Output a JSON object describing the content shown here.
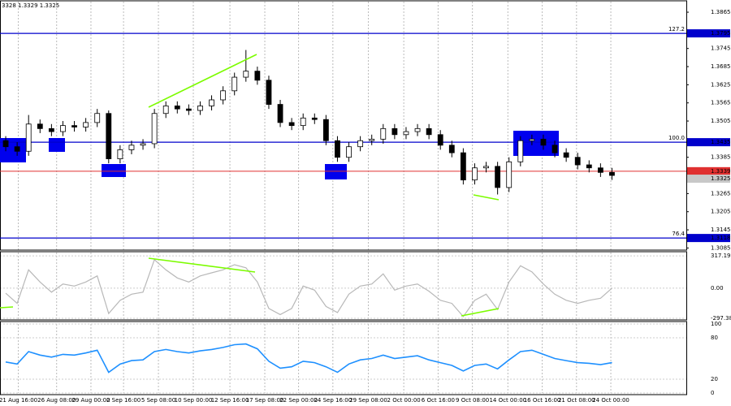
{
  "chart_data": [
    {
      "type": "candlestick",
      "title": "3328 1.3329 1.3325",
      "xlim": [
        0,
        60
      ],
      "xticks": [
        {
          "value": 1.6,
          "label": "21 Aug 16:00"
        },
        {
          "value": 4.95,
          "label": "26 Aug 08:00"
        },
        {
          "value": 7.95,
          "label": "29 Aug 00:00"
        },
        {
          "value": 10.8,
          "label": "2 Sep 16:00"
        },
        {
          "value": 13.85,
          "label": "5 Sep 08:00"
        },
        {
          "value": 16.9,
          "label": "10 Sep 00:00"
        },
        {
          "value": 20.1,
          "label": "12 Sep 16:00"
        },
        {
          "value": 23.15,
          "label": "17 Sep 08:00"
        },
        {
          "value": 26.1,
          "label": "22 Sep 00:00"
        },
        {
          "value": 29.1,
          "label": "24 Sep 16:00"
        },
        {
          "value": 32.2,
          "label": "29 Sep 08:00"
        },
        {
          "value": 35.3,
          "label": "2 Oct 00:00"
        },
        {
          "value": 38.3,
          "label": "6 Oct 16:00"
        },
        {
          "value": 41.3,
          "label": "9 Oct 08:00"
        },
        {
          "value": 44.4,
          "label": "14 Oct 00:00"
        },
        {
          "value": 47.4,
          "label": "16 Oct 16:00"
        },
        {
          "value": 50.4,
          "label": "21 Oct 08:00"
        },
        {
          "value": 53.4,
          "label": "24 Oct 00:00"
        }
      ],
      "ylim": [
        1.3078,
        1.39
      ],
      "yticks": [
        1.3865,
        1.3745,
        1.3685,
        1.3625,
        1.3565,
        1.3505,
        1.3385,
        1.3265,
        1.3205,
        1.3145,
        1.3085
      ],
      "open": [
        1.344,
        1.342,
        1.3405,
        1.3495,
        1.348,
        1.347,
        1.349,
        1.3485,
        1.35,
        1.353,
        1.338,
        1.341,
        1.3425,
        1.343,
        1.353,
        1.3555,
        1.3545,
        1.354,
        1.3555,
        1.3575,
        1.3605,
        1.365,
        1.367,
        1.364,
        1.356,
        1.35,
        1.349,
        1.3515,
        1.351,
        1.344,
        1.3385,
        1.342,
        1.344,
        1.3445,
        1.348,
        1.346,
        1.347,
        1.348,
        1.346,
        1.3425,
        1.34,
        1.331,
        1.335,
        1.3355,
        1.3285,
        1.337,
        1.344,
        1.3445,
        1.3425,
        1.34,
        1.3385,
        1.336,
        1.335,
        1.3335
      ],
      "high": [
        1.3455,
        1.3435,
        1.3525,
        1.351,
        1.3495,
        1.3505,
        1.3505,
        1.3515,
        1.3545,
        1.354,
        1.3425,
        1.344,
        1.3445,
        1.3545,
        1.357,
        1.357,
        1.356,
        1.357,
        1.359,
        1.362,
        1.3665,
        1.374,
        1.3685,
        1.3655,
        1.3575,
        1.3515,
        1.353,
        1.353,
        1.3525,
        1.3455,
        1.3435,
        1.3455,
        1.346,
        1.3495,
        1.3495,
        1.3485,
        1.3495,
        1.3495,
        1.3475,
        1.344,
        1.3415,
        1.3365,
        1.337,
        1.337,
        1.3385,
        1.3455,
        1.346,
        1.346,
        1.344,
        1.3415,
        1.34,
        1.3375,
        1.3365,
        1.335
      ],
      "low": [
        1.3405,
        1.339,
        1.339,
        1.3465,
        1.3455,
        1.3455,
        1.347,
        1.347,
        1.3485,
        1.3365,
        1.3365,
        1.3395,
        1.341,
        1.3415,
        1.3515,
        1.353,
        1.3525,
        1.3525,
        1.354,
        1.356,
        1.359,
        1.3635,
        1.3625,
        1.3545,
        1.3485,
        1.3475,
        1.3475,
        1.3495,
        1.3425,
        1.337,
        1.337,
        1.3405,
        1.3425,
        1.343,
        1.3445,
        1.3445,
        1.3455,
        1.3445,
        1.341,
        1.3385,
        1.3295,
        1.3295,
        1.3335,
        1.3262,
        1.327,
        1.3355,
        1.3425,
        1.341,
        1.3385,
        1.337,
        1.3345,
        1.3335,
        1.332,
        1.331
      ],
      "close": [
        1.342,
        1.3405,
        1.3495,
        1.348,
        1.347,
        1.349,
        1.3485,
        1.35,
        1.353,
        1.338,
        1.341,
        1.3425,
        1.343,
        1.353,
        1.3555,
        1.3545,
        1.354,
        1.3555,
        1.3575,
        1.3605,
        1.365,
        1.367,
        1.364,
        1.356,
        1.35,
        1.349,
        1.3515,
        1.351,
        1.344,
        1.3385,
        1.342,
        1.344,
        1.3445,
        1.348,
        1.346,
        1.347,
        1.348,
        1.346,
        1.3425,
        1.34,
        1.331,
        1.335,
        1.3355,
        1.3285,
        1.337,
        1.344,
        1.3445,
        1.3425,
        1.34,
        1.3385,
        1.336,
        1.335,
        1.3335,
        1.3325
      ],
      "levels": [
        {
          "name": "127.2",
          "value": 1.3795,
          "color": "#0000cc"
        },
        {
          "name": "100.0",
          "value": 1.3435,
          "color": "#0000cc"
        },
        {
          "name": "76.4",
          "value": 1.3118,
          "color": "#0000cc"
        }
      ],
      "marker": {
        "value": 1.3339,
        "color": "#e03030"
      },
      "last": 1.3325
    },
    {
      "type": "line",
      "color": "#b8b8b8",
      "ylim": [
        -305,
        350
      ],
      "yticks": [
        317.1939,
        {
          "value": 0,
          "label": "0.00"
        },
        -297.386
      ],
      "values": [
        -50,
        -150,
        180,
        60,
        -40,
        40,
        20,
        60,
        120,
        -250,
        -120,
        -60,
        -40,
        280,
        180,
        100,
        60,
        120,
        150,
        180,
        230,
        200,
        60,
        -200,
        -260,
        -200,
        20,
        -20,
        -180,
        -240,
        -60,
        20,
        40,
        140,
        -20,
        20,
        40,
        -30,
        -120,
        -150,
        -280,
        -120,
        -60,
        -210,
        60,
        220,
        160,
        40,
        -60,
        -120,
        -150,
        -120,
        -100,
        0
      ]
    },
    {
      "type": "line",
      "color": "#1e90ff",
      "ylim": [
        0,
        100
      ],
      "yticks": [
        100,
        80,
        20,
        0
      ],
      "values": [
        45,
        42,
        60,
        55,
        52,
        56,
        55,
        58,
        62,
        30,
        42,
        47,
        48,
        60,
        63,
        60,
        58,
        61,
        63,
        66,
        70,
        71,
        64,
        46,
        36,
        38,
        46,
        44,
        38,
        30,
        42,
        48,
        50,
        55,
        50,
        52,
        54,
        48,
        44,
        40,
        32,
        40,
        42,
        35,
        48,
        60,
        62,
        56,
        50,
        47,
        44,
        43,
        41,
        44
      ]
    }
  ]
}
